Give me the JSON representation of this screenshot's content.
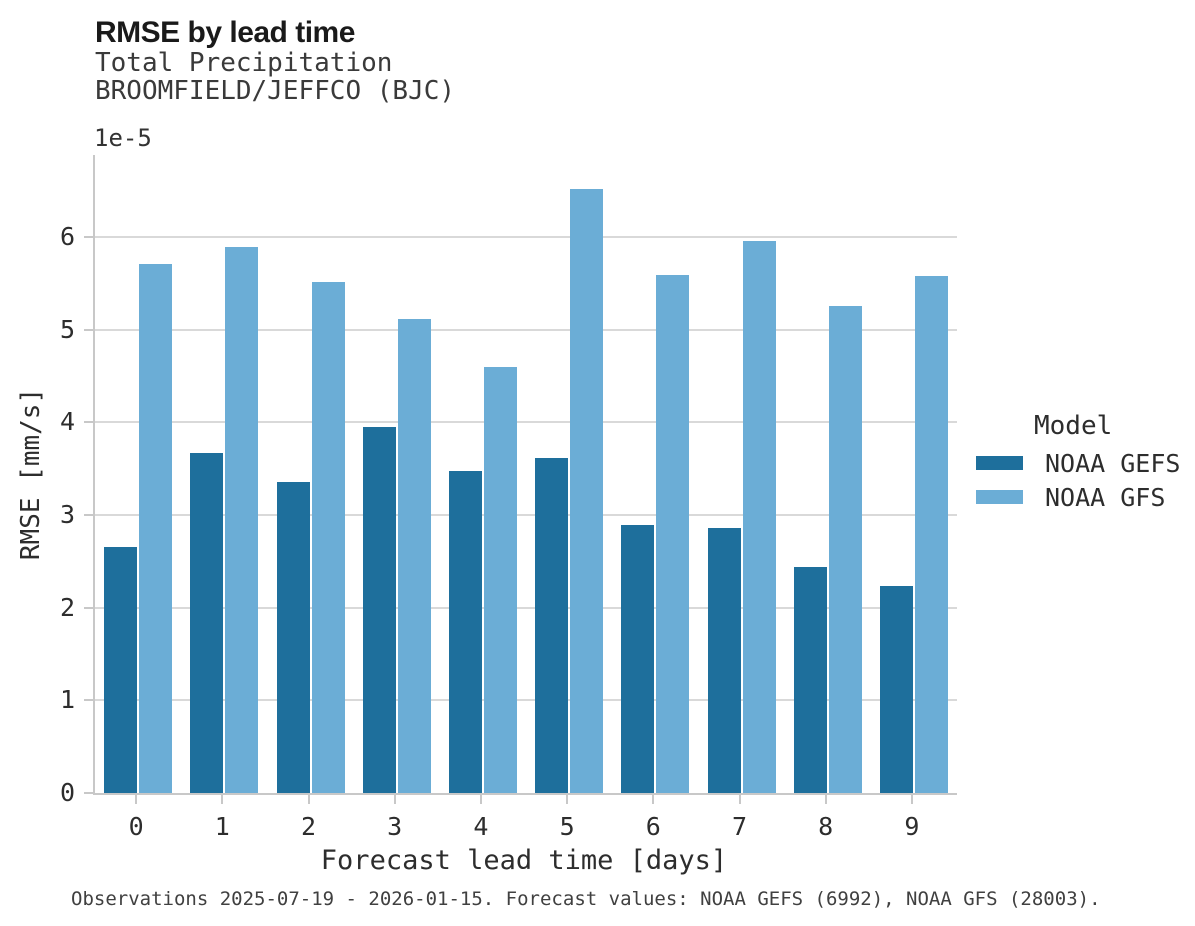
{
  "header": {
    "title": "RMSE by lead time",
    "subtitle_line1": "Total Precipitation",
    "subtitle_line2": "BROOMFIELD/JEFFCO (BJC)"
  },
  "axes": {
    "y_offset_label": "1e-5",
    "ylabel": "RMSE [mm/s]",
    "xlabel": "Forecast lead time [days]",
    "y_ticks": [
      0,
      1,
      2,
      3,
      4,
      5,
      6
    ],
    "x_ticks": [
      "0",
      "1",
      "2",
      "3",
      "4",
      "5",
      "6",
      "7",
      "8",
      "9"
    ]
  },
  "legend": {
    "title": "Model",
    "entries": [
      {
        "label": "NOAA GEFS",
        "color": "#1e6f9c"
      },
      {
        "label": "NOAA GFS",
        "color": "#6badd6"
      }
    ]
  },
  "caption": "Observations 2025-07-19 - 2026-01-15. Forecast values: NOAA GEFS (6992), NOAA GFS (28003).",
  "colors": {
    "gefs_dark_blue": "#1e6f9c",
    "gfs_light_blue": "#6badd6",
    "gridline_gray": "#d9d9d9",
    "spine_gray": "#c8c8c8"
  },
  "chart_data": {
    "type": "bar",
    "title": "RMSE by lead time",
    "subtitle": [
      "Total Precipitation",
      "BROOMFIELD/JEFFCO (BJC)"
    ],
    "categories": [
      0,
      1,
      2,
      3,
      4,
      5,
      6,
      7,
      8,
      9
    ],
    "series": [
      {
        "name": "NOAA GEFS",
        "color": "#1e6f9c",
        "values": [
          2.66,
          3.67,
          3.36,
          3.95,
          3.48,
          3.61,
          2.89,
          2.86,
          2.44,
          2.23
        ]
      },
      {
        "name": "NOAA GFS",
        "color": "#6badd6",
        "values": [
          5.71,
          5.89,
          5.52,
          5.11,
          4.6,
          6.52,
          5.59,
          5.96,
          5.26,
          5.58
        ]
      }
    ],
    "value_scale": "1e-5",
    "xlabel": "Forecast lead time [days]",
    "ylabel": "RMSE [mm/s]",
    "ylim": [
      0,
      6.885
    ],
    "y_tick_step": 1,
    "grid": "horizontal",
    "legend_title": "Model",
    "legend_position": "center-right",
    "bar_orientation": "vertical"
  }
}
